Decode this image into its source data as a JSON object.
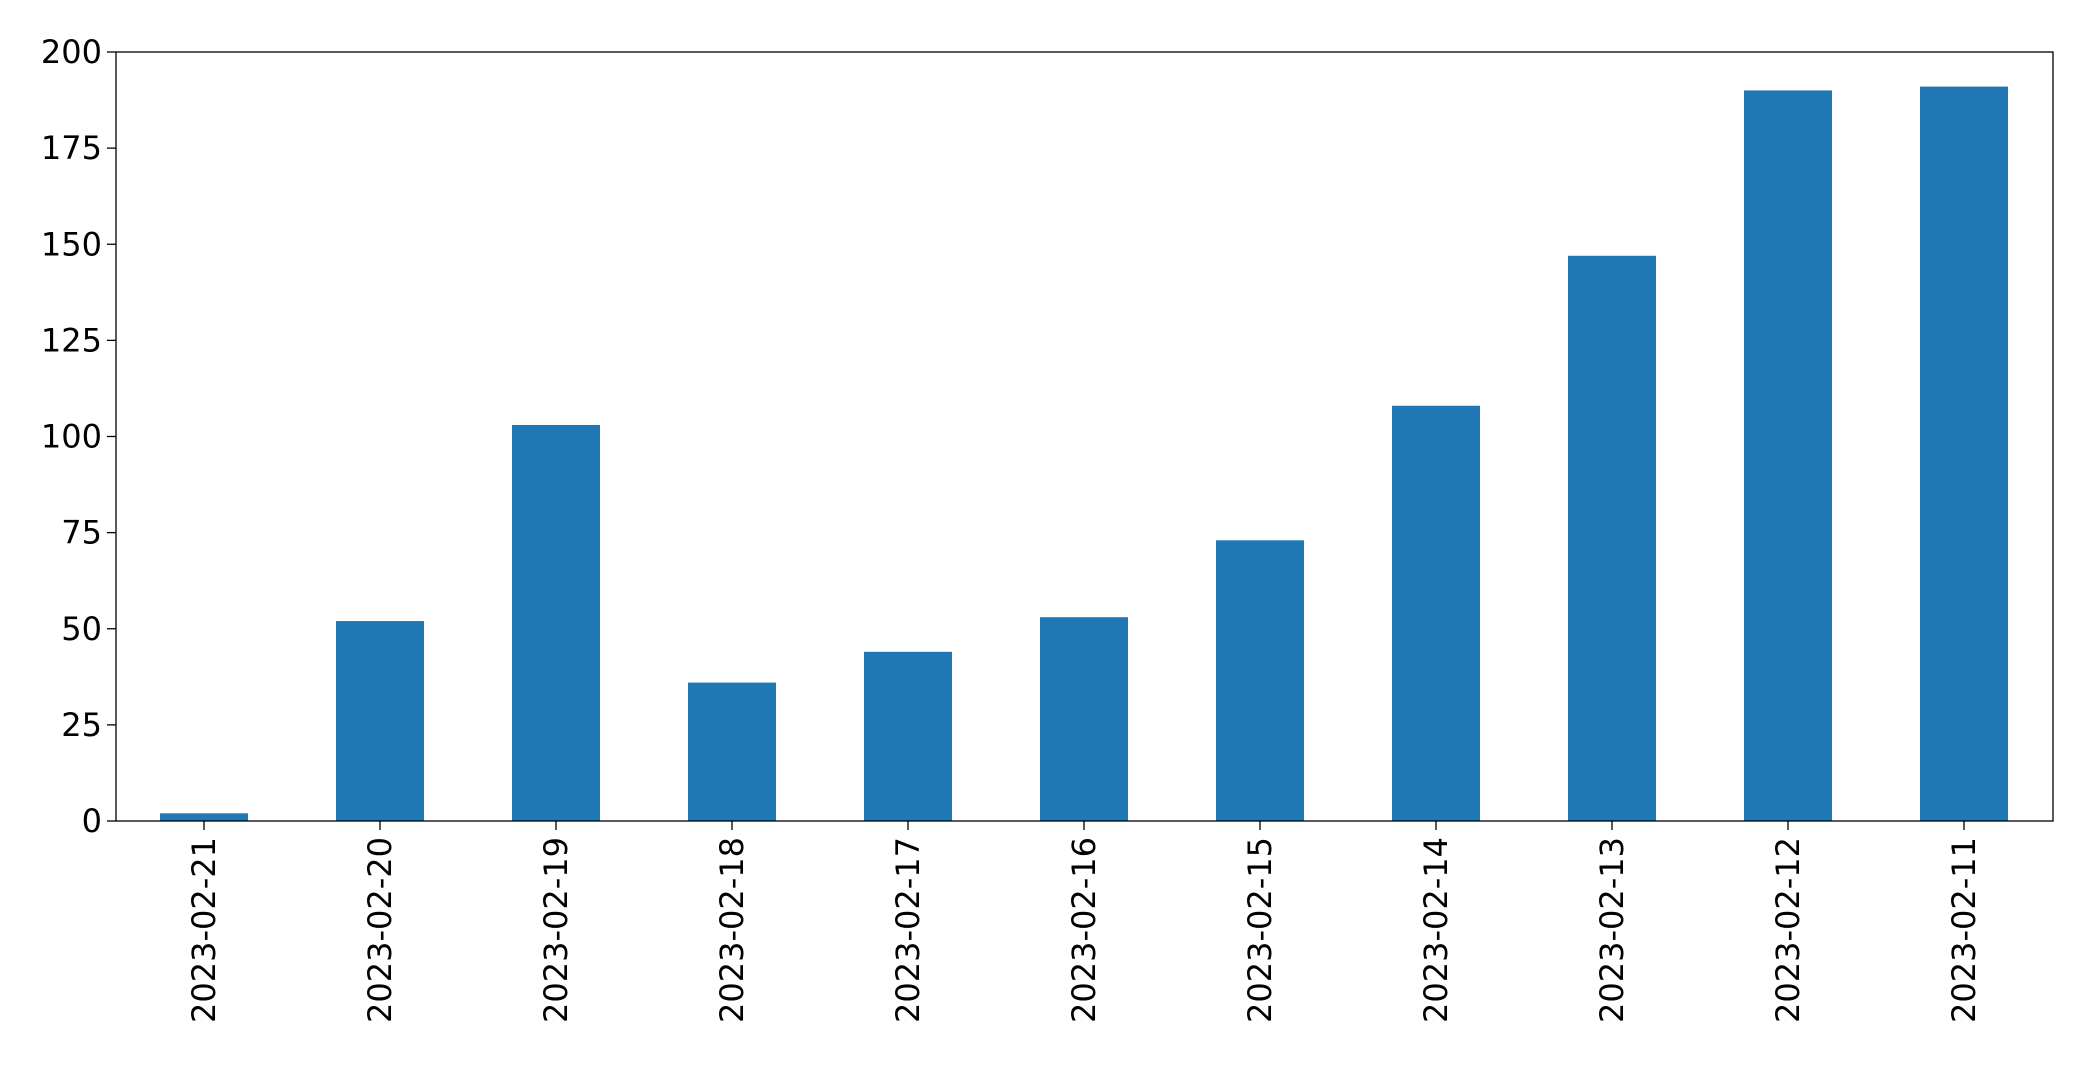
{
  "chart_data": {
    "type": "bar",
    "categories": [
      "2023-02-21",
      "2023-02-20",
      "2023-02-19",
      "2023-02-18",
      "2023-02-17",
      "2023-02-16",
      "2023-02-15",
      "2023-02-14",
      "2023-02-13",
      "2023-02-12",
      "2023-02-11"
    ],
    "values": [
      2,
      52,
      103,
      36,
      44,
      53,
      73,
      108,
      147,
      190,
      191
    ],
    "title": "",
    "xlabel": "",
    "ylabel": "",
    "ylim": [
      0,
      200
    ],
    "yticks": [
      0,
      25,
      50,
      75,
      100,
      125,
      150,
      175,
      200
    ],
    "bar_color": "#1f77b4",
    "grid": false,
    "legend": "none"
  }
}
